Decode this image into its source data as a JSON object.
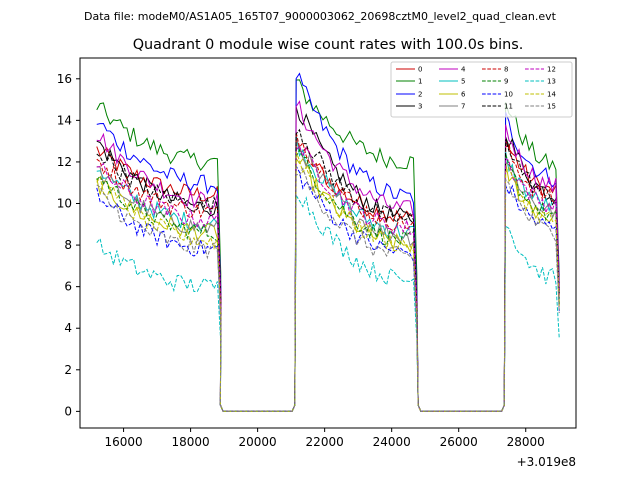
{
  "chart_data": {
    "type": "line",
    "suptitle": "Data file: modeM0/AS1A05_165T07_9000003062_20698cztM0_level2_quad_clean.evt",
    "title": "Quadrant 0 module wise count rates with 100.0s bins.",
    "xlabel": "",
    "ylabel": "",
    "x_offset_label": "+3.019e8",
    "xlim": [
      14700,
      29500
    ],
    "ylim": [
      -0.8,
      17.0
    ],
    "x_ticks": [
      16000,
      18000,
      20000,
      22000,
      24000,
      26000,
      28000
    ],
    "x_tick_labels": [
      "16000",
      "18000",
      "20000",
      "22000",
      "24000",
      "26000",
      "28000"
    ],
    "y_ticks": [
      0,
      2,
      4,
      6,
      8,
      10,
      12,
      14,
      16
    ],
    "y_tick_labels": [
      "0",
      "2",
      "4",
      "6",
      "8",
      "10",
      "12",
      "14",
      "16"
    ],
    "legend_position": "top-right",
    "segments": [
      {
        "start": 15200,
        "end": 18850
      },
      {
        "start": 21150,
        "end": 24750
      },
      {
        "start": 27400,
        "end": 29000
      }
    ],
    "gaps": [
      {
        "start": 18850,
        "end": 21150
      },
      {
        "start": 24750,
        "end": 27400
      }
    ],
    "series": [
      {
        "name": "0",
        "color": "#cc0000",
        "dash": "solid",
        "segments": [
          [
            12.6,
            10.4
          ],
          [
            13.0,
            9.3
          ],
          [
            13.0,
            10.6
          ]
        ]
      },
      {
        "name": "1",
        "color": "#008000",
        "dash": "solid",
        "segments": [
          [
            14.7,
            12.0
          ],
          [
            15.8,
            12.0
          ],
          [
            15.0,
            11.8
          ]
        ]
      },
      {
        "name": "2",
        "color": "#0000ff",
        "dash": "solid",
        "segments": [
          [
            14.0,
            10.9
          ],
          [
            16.2,
            10.3
          ],
          [
            14.1,
            11.2
          ]
        ]
      },
      {
        "name": "3",
        "color": "#000000",
        "dash": "solid",
        "segments": [
          [
            13.0,
            9.8
          ],
          [
            14.8,
            9.3
          ],
          [
            13.6,
            10.4
          ]
        ]
      },
      {
        "name": "4",
        "color": "#bf00bf",
        "dash": "solid",
        "segments": [
          [
            13.4,
            10.1
          ],
          [
            14.8,
            9.7
          ],
          [
            13.6,
            10.8
          ]
        ]
      },
      {
        "name": "5",
        "color": "#00bfbf",
        "dash": "solid",
        "segments": [
          [
            11.8,
            9.0
          ],
          [
            13.0,
            8.6
          ],
          [
            12.2,
            9.8
          ]
        ]
      },
      {
        "name": "6",
        "color": "#bfbf00",
        "dash": "solid",
        "segments": [
          [
            11.0,
            8.6
          ],
          [
            12.2,
            8.0
          ],
          [
            11.6,
            9.3
          ]
        ]
      },
      {
        "name": "7",
        "color": "#808080",
        "dash": "solid",
        "segments": [
          [
            11.6,
            8.8
          ],
          [
            13.0,
            8.4
          ],
          [
            12.2,
            9.6
          ]
        ]
      },
      {
        "name": "8",
        "color": "#cc0000",
        "dash": "dashed",
        "segments": [
          [
            12.1,
            9.6
          ],
          [
            13.4,
            9.0
          ],
          [
            12.8,
            10.2
          ]
        ]
      },
      {
        "name": "9",
        "color": "#008000",
        "dash": "dashed",
        "segments": [
          [
            11.4,
            8.6
          ],
          [
            12.6,
            8.2
          ],
          [
            12.0,
            9.4
          ]
        ]
      },
      {
        "name": "10",
        "color": "#0000ff",
        "dash": "dashed",
        "segments": [
          [
            10.4,
            7.8
          ],
          [
            11.6,
            7.6
          ],
          [
            11.0,
            8.8
          ]
        ]
      },
      {
        "name": "11",
        "color": "#000000",
        "dash": "dashed",
        "segments": [
          [
            12.6,
            9.9
          ],
          [
            13.8,
            9.2
          ],
          [
            13.2,
            10.3
          ]
        ]
      },
      {
        "name": "12",
        "color": "#bf00bf",
        "dash": "dashed",
        "segments": [
          [
            11.8,
            9.2
          ],
          [
            13.0,
            8.8
          ],
          [
            12.2,
            9.9
          ]
        ]
      },
      {
        "name": "13",
        "color": "#00bfbf",
        "dash": "dashed",
        "segments": [
          [
            8.0,
            6.0
          ],
          [
            10.8,
            6.3
          ],
          [
            9.2,
            6.4
          ]
        ]
      },
      {
        "name": "14",
        "color": "#bfbf00",
        "dash": "dashed",
        "segments": [
          [
            11.2,
            8.2
          ],
          [
            12.4,
            8.0
          ],
          [
            11.8,
            9.2
          ]
        ]
      },
      {
        "name": "15",
        "color": "#808080",
        "dash": "dashed",
        "segments": [
          [
            10.6,
            7.8
          ],
          [
            11.8,
            7.4
          ],
          [
            11.2,
            8.6
          ]
        ]
      }
    ]
  }
}
